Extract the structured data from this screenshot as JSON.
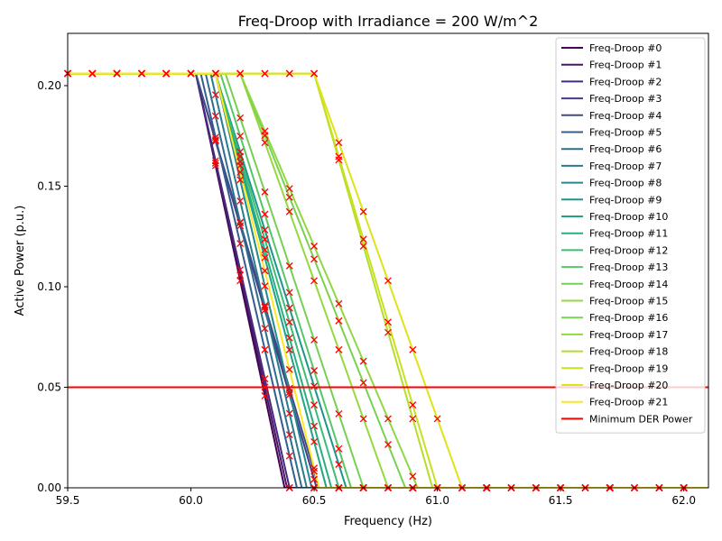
{
  "chart_data": {
    "type": "line",
    "title": "Freq-Droop with Irradiance = 200 W/m^2",
    "xlabel": "Frequency (Hz)",
    "ylabel": "Active Power (p.u.)",
    "xlim": [
      59.5,
      62.1
    ],
    "ylim": [
      0.0,
      0.226
    ],
    "xticks": [
      59.5,
      60.0,
      60.5,
      61.0,
      61.5,
      62.0
    ],
    "xtick_labels": [
      "59.5",
      "60.0",
      "60.5",
      "61.0",
      "61.5",
      "62.0"
    ],
    "yticks": [
      0.0,
      0.05,
      0.1,
      0.15,
      0.2
    ],
    "ytick_labels": [
      "0.00",
      "0.05",
      "0.10",
      "0.15",
      "0.20"
    ],
    "grid": false,
    "legend_position": "top-right",
    "p_max": 0.206,
    "series": [
      {
        "name": "Freq-Droop #0",
        "color": "#440154",
        "f_start": 60.02,
        "f_end": 60.38
      },
      {
        "name": "Freq-Droop #1",
        "color": "#481769",
        "f_start": 60.02,
        "f_end": 60.39
      },
      {
        "name": "Freq-Droop #2",
        "color": "#472a7a",
        "f_start": 60.02,
        "f_end": 60.4
      },
      {
        "name": "Freq-Droop #3",
        "color": "#433d84",
        "f_start": 60.02,
        "f_end": 60.51
      },
      {
        "name": "Freq-Droop #4",
        "color": "#3d4e8a",
        "f_start": 60.02,
        "f_end": 60.52
      },
      {
        "name": "Freq-Droop #5",
        "color": "#355e8d",
        "f_start": 60.04,
        "f_end": 60.43
      },
      {
        "name": "Freq-Droop #6",
        "color": "#2e6d8e",
        "f_start": 60.06,
        "f_end": 60.45
      },
      {
        "name": "Freq-Droop #7",
        "color": "#297b8e",
        "f_start": 60.08,
        "f_end": 60.47
      },
      {
        "name": "Freq-Droop #8",
        "color": "#23898e",
        "f_start": 60.1,
        "f_end": 60.49
      },
      {
        "name": "Freq-Droop #9",
        "color": "#1f968b",
        "f_start": 60.1,
        "f_end": 60.63
      },
      {
        "name": "Freq-Droop #10",
        "color": "#20a386",
        "f_start": 60.1,
        "f_end": 60.55
      },
      {
        "name": "Freq-Droop #11",
        "color": "#29af7f",
        "f_start": 60.1,
        "f_end": 60.57
      },
      {
        "name": "Freq-Droop #12",
        "color": "#3dbc74",
        "f_start": 60.1,
        "f_end": 60.6
      },
      {
        "name": "Freq-Droop #13",
        "color": "#56c667",
        "f_start": 60.12,
        "f_end": 60.65
      },
      {
        "name": "Freq-Droop #14",
        "color": "#75d054",
        "f_start": 60.14,
        "f_end": 60.7
      },
      {
        "name": "Freq-Droop #15",
        "color": "#95d840",
        "f_start": 60.2,
        "f_end": 60.8
      },
      {
        "name": "Freq-Droop #16",
        "color": "#7ad151",
        "f_start": 60.2,
        "f_end": 60.87
      },
      {
        "name": "Freq-Droop #17",
        "color": "#8fd744",
        "f_start": 60.2,
        "f_end": 60.92
      },
      {
        "name": "Freq-Droop #18",
        "color": "#b5de2b",
        "f_start": 60.5,
        "f_end": 60.98
      },
      {
        "name": "Freq-Droop #19",
        "color": "#c8e020",
        "f_start": 60.5,
        "f_end": 61.0
      },
      {
        "name": "Freq-Droop #20",
        "color": "#dde318",
        "f_start": 60.5,
        "f_end": 61.1
      },
      {
        "name": "Freq-Droop #21",
        "color": "#fde725",
        "f_start": 60.1,
        "f_end": 60.52
      }
    ],
    "reference_line": {
      "name": "Minimum DER Power",
      "color": "#ff0000",
      "y": 0.05
    },
    "sample_frequencies": [
      59.5,
      59.6,
      59.7,
      59.8,
      59.9,
      60.0,
      60.1,
      60.2,
      60.3,
      60.4,
      60.5,
      60.6,
      60.7,
      60.8,
      60.9,
      61.0,
      61.1,
      61.2,
      61.3,
      61.4,
      61.5,
      61.6,
      61.7,
      61.8,
      61.9,
      62.0
    ],
    "marker_color": "#ff0000"
  }
}
